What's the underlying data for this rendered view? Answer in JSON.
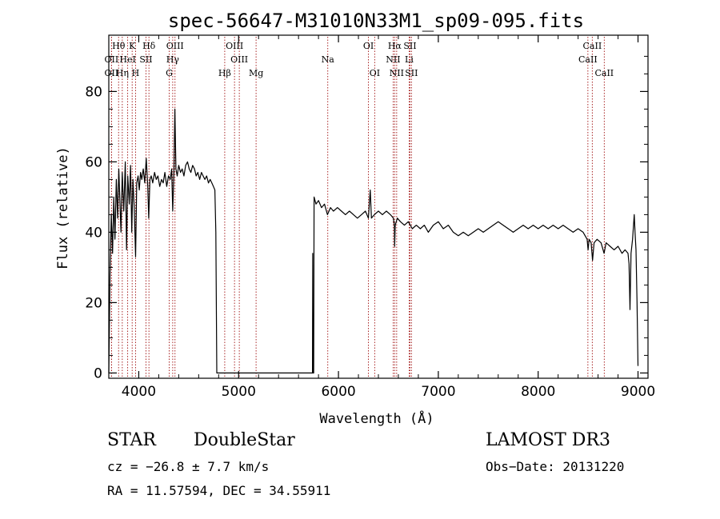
{
  "chart_data": {
    "type": "line",
    "title": "spec-56647-M31010N33M1_sp09-095.fits",
    "xlabel": "Wavelength (Å)",
    "ylabel": "Flux (relative)",
    "xlim": [
      3700,
      9100
    ],
    "ylim": [
      -1.5,
      96
    ],
    "xticks": [
      4000,
      5000,
      6000,
      7000,
      8000,
      9000
    ],
    "xtick_labels": [
      "4000",
      "5000",
      "6000",
      "7000",
      "8000",
      "9000"
    ],
    "yticks": [
      0,
      20,
      40,
      60,
      80
    ],
    "ytick_labels": [
      "0",
      "20",
      "40",
      "60",
      "80"
    ],
    "grid": false,
    "series": [
      {
        "name": "flux",
        "color": "#000000",
        "points": [
          [
            3700,
            0
          ],
          [
            3712,
            28
          ],
          [
            3725,
            45
          ],
          [
            3738,
            34
          ],
          [
            3750,
            50
          ],
          [
            3762,
            38
          ],
          [
            3775,
            55
          ],
          [
            3788,
            44
          ],
          [
            3800,
            58
          ],
          [
            3812,
            48
          ],
          [
            3822,
            40
          ],
          [
            3835,
            57
          ],
          [
            3850,
            46
          ],
          [
            3865,
            60
          ],
          [
            3878,
            35
          ],
          [
            3890,
            56
          ],
          [
            3905,
            48
          ],
          [
            3918,
            59
          ],
          [
            3930,
            40
          ],
          [
            3942,
            55
          ],
          [
            3955,
            47
          ],
          [
            3968,
            33
          ],
          [
            3980,
            54
          ],
          [
            3993,
            56
          ],
          [
            4005,
            52
          ],
          [
            4018,
            57
          ],
          [
            4030,
            55
          ],
          [
            4045,
            58
          ],
          [
            4060,
            54
          ],
          [
            4075,
            61
          ],
          [
            4090,
            53
          ],
          [
            4100,
            44
          ],
          [
            4112,
            55
          ],
          [
            4125,
            56
          ],
          [
            4140,
            54
          ],
          [
            4158,
            57
          ],
          [
            4175,
            55
          ],
          [
            4192,
            56
          ],
          [
            4210,
            53
          ],
          [
            4228,
            55
          ],
          [
            4245,
            54
          ],
          [
            4262,
            57
          ],
          [
            4280,
            53
          ],
          [
            4298,
            56
          ],
          [
            4315,
            55
          ],
          [
            4330,
            58
          ],
          [
            4340,
            46
          ],
          [
            4352,
            57
          ],
          [
            4362,
            75
          ],
          [
            4372,
            58
          ],
          [
            4385,
            56
          ],
          [
            4400,
            59
          ],
          [
            4418,
            57
          ],
          [
            4435,
            58
          ],
          [
            4452,
            56
          ],
          [
            4470,
            59
          ],
          [
            4488,
            60
          ],
          [
            4505,
            58
          ],
          [
            4522,
            57
          ],
          [
            4540,
            59
          ],
          [
            4558,
            58
          ],
          [
            4575,
            56
          ],
          [
            4592,
            57
          ],
          [
            4610,
            55
          ],
          [
            4628,
            57
          ],
          [
            4645,
            56
          ],
          [
            4662,
            55
          ],
          [
            4680,
            56
          ],
          [
            4698,
            54
          ],
          [
            4715,
            55
          ],
          [
            4732,
            54
          ],
          [
            4748,
            53
          ],
          [
            4762,
            52
          ],
          [
            4772,
            40
          ],
          [
            4782,
            0
          ],
          [
            4790,
            0
          ],
          [
            5740,
            0
          ],
          [
            5742,
            34
          ],
          [
            5745,
            0
          ],
          [
            5748,
            0
          ],
          [
            5752,
            0
          ],
          [
            5756,
            50
          ],
          [
            5775,
            48
          ],
          [
            5800,
            49
          ],
          [
            5830,
            47
          ],
          [
            5860,
            48
          ],
          [
            5890,
            45
          ],
          [
            5920,
            47
          ],
          [
            5950,
            46
          ],
          [
            5990,
            47
          ],
          [
            6030,
            46
          ],
          [
            6070,
            45
          ],
          [
            6110,
            46
          ],
          [
            6150,
            45
          ],
          [
            6190,
            44
          ],
          [
            6230,
            45
          ],
          [
            6270,
            46
          ],
          [
            6300,
            44
          ],
          [
            6318,
            52
          ],
          [
            6330,
            44
          ],
          [
            6360,
            45
          ],
          [
            6400,
            46
          ],
          [
            6440,
            45
          ],
          [
            6480,
            46
          ],
          [
            6520,
            45
          ],
          [
            6550,
            44
          ],
          [
            6560,
            42
          ],
          [
            6563,
            36
          ],
          [
            6568,
            42
          ],
          [
            6590,
            44
          ],
          [
            6620,
            43
          ],
          [
            6660,
            42
          ],
          [
            6700,
            43
          ],
          [
            6740,
            41
          ],
          [
            6780,
            42
          ],
          [
            6820,
            41
          ],
          [
            6860,
            42
          ],
          [
            6900,
            40
          ],
          [
            6950,
            42
          ],
          [
            7000,
            43
          ],
          [
            7050,
            41
          ],
          [
            7100,
            42
          ],
          [
            7150,
            40
          ],
          [
            7200,
            39
          ],
          [
            7250,
            40
          ],
          [
            7300,
            39
          ],
          [
            7350,
            40
          ],
          [
            7400,
            41
          ],
          [
            7450,
            40
          ],
          [
            7500,
            41
          ],
          [
            7550,
            42
          ],
          [
            7600,
            43
          ],
          [
            7650,
            42
          ],
          [
            7700,
            41
          ],
          [
            7750,
            40
          ],
          [
            7800,
            41
          ],
          [
            7850,
            42
          ],
          [
            7900,
            41
          ],
          [
            7950,
            42
          ],
          [
            8000,
            41
          ],
          [
            8050,
            42
          ],
          [
            8100,
            41
          ],
          [
            8150,
            42
          ],
          [
            8200,
            41
          ],
          [
            8250,
            42
          ],
          [
            8300,
            41
          ],
          [
            8350,
            40
          ],
          [
            8400,
            41
          ],
          [
            8450,
            40
          ],
          [
            8490,
            38
          ],
          [
            8500,
            35
          ],
          [
            8510,
            38
          ],
          [
            8530,
            37
          ],
          [
            8545,
            32
          ],
          [
            8560,
            37
          ],
          [
            8590,
            38
          ],
          [
            8630,
            37
          ],
          [
            8660,
            34
          ],
          [
            8680,
            37
          ],
          [
            8720,
            36
          ],
          [
            8760,
            35
          ],
          [
            8800,
            36
          ],
          [
            8840,
            34
          ],
          [
            8870,
            35
          ],
          [
            8900,
            34
          ],
          [
            8910,
            31
          ],
          [
            8920,
            18
          ],
          [
            8930,
            34
          ],
          [
            8945,
            38
          ],
          [
            8955,
            42
          ],
          [
            8962,
            45
          ],
          [
            8970,
            40
          ],
          [
            8980,
            35
          ],
          [
            8990,
            20
          ],
          [
            9000,
            2
          ]
        ]
      }
    ],
    "lines": [
      {
        "label": "Hθ",
        "x": 3798,
        "row": 0
      },
      {
        "label": "OII",
        "x": 3727,
        "row": 1
      },
      {
        "label": "OII",
        "x": 3727,
        "row": 2
      },
      {
        "label": "Hη",
        "x": 3835,
        "row": 2
      },
      {
        "label": "H",
        "x": 3968,
        "row": 2
      },
      {
        "label": "HeI",
        "x": 3889,
        "row": 1
      },
      {
        "label": "K",
        "x": 3934,
        "row": 0
      },
      {
        "label": "SII",
        "x": 4072,
        "row": 1
      },
      {
        "label": "Hδ",
        "x": 4102,
        "row": 0
      },
      {
        "label": "OIII",
        "x": 4363,
        "row": 0
      },
      {
        "label": "Hγ",
        "x": 4340,
        "row": 1
      },
      {
        "label": "G",
        "x": 4305,
        "row": 2
      },
      {
        "label": "OIII",
        "x": 4959,
        "row": 0
      },
      {
        "label": "OIII",
        "x": 5007,
        "row": 1
      },
      {
        "label": "Hβ",
        "x": 4861,
        "row": 2
      },
      {
        "label": "Mg",
        "x": 5175,
        "row": 2
      },
      {
        "label": "Na",
        "x": 5893,
        "row": 1
      },
      {
        "label": "OI",
        "x": 6300,
        "row": 0
      },
      {
        "label": "OI",
        "x": 6363,
        "row": 2
      },
      {
        "label": "Hα",
        "x": 6563,
        "row": 0
      },
      {
        "label": "NII",
        "x": 6548,
        "row": 1
      },
      {
        "label": "NII",
        "x": 6583,
        "row": 2
      },
      {
        "label": "SII",
        "x": 6716,
        "row": 0
      },
      {
        "label": "Li",
        "x": 6708,
        "row": 1
      },
      {
        "label": "SII",
        "x": 6731,
        "row": 2
      },
      {
        "label": "CaII",
        "x": 8542,
        "row": 0
      },
      {
        "label": "CaII",
        "x": 8498,
        "row": 1
      },
      {
        "label": "CaII",
        "x": 8662,
        "row": 2
      }
    ],
    "line_color": "#a01010"
  },
  "info": {
    "type_label": "STAR",
    "subclass": "DoubleStar",
    "survey": "LAMOST DR3",
    "cz": "cz = −26.8 ± 7.7 km/s",
    "obs_date": "Obs−Date: 20131220",
    "coords": "RA =  11.57594, DEC =  34.55911"
  }
}
